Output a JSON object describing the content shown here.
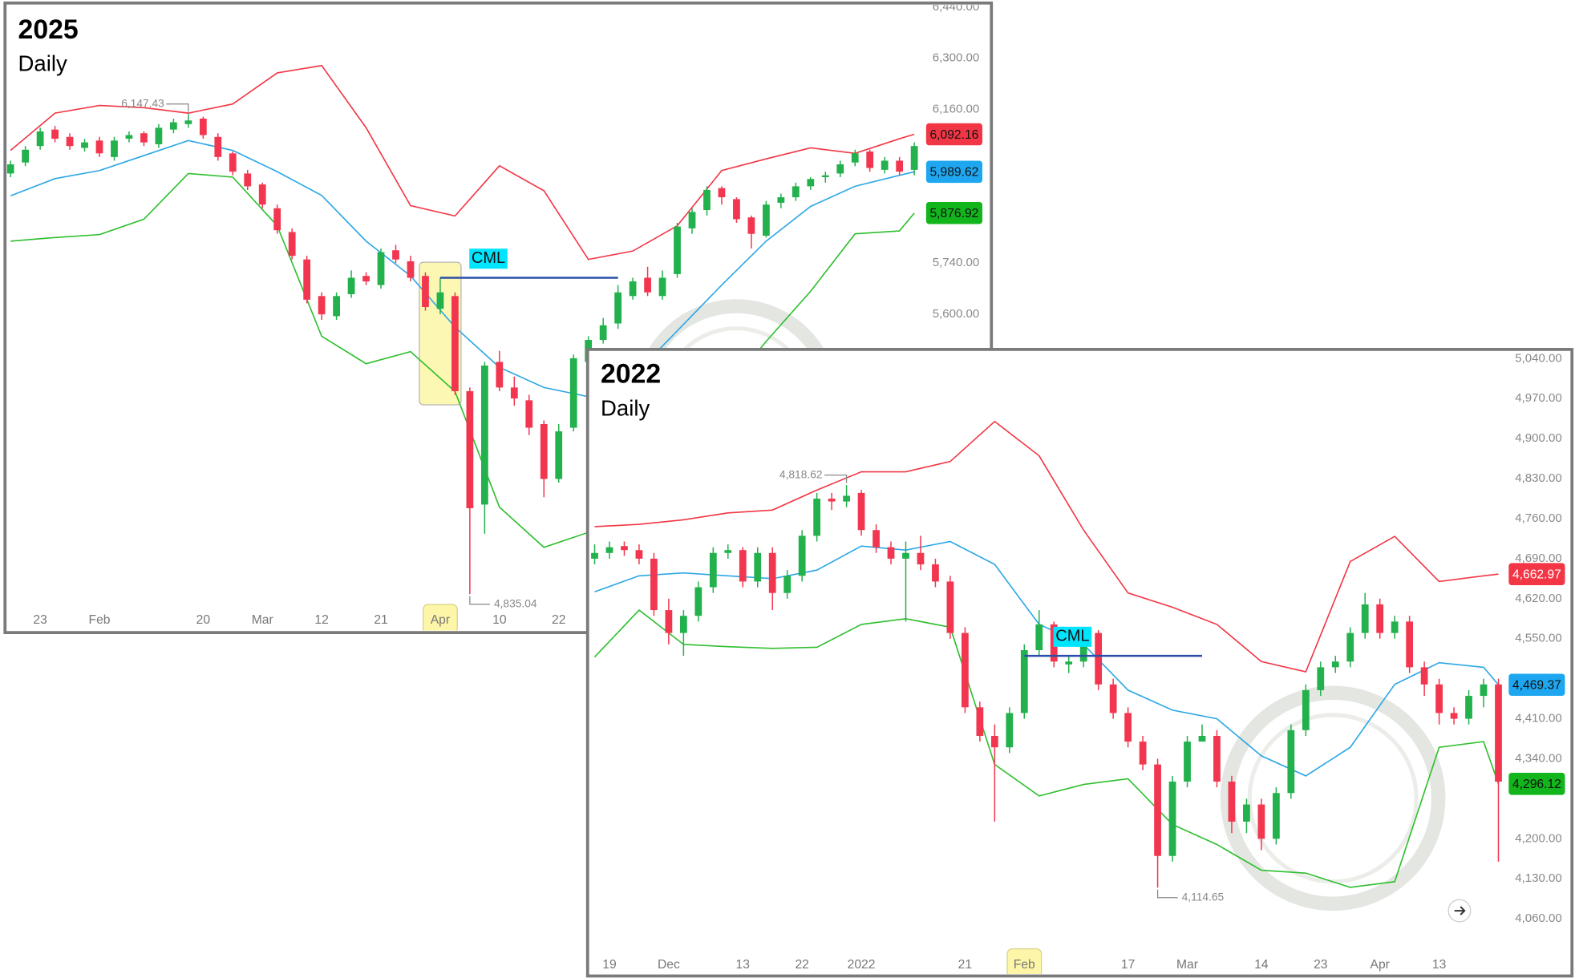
{
  "chart_data": [
    {
      "type": "candlestick",
      "title": "2025",
      "subtitle": "Daily",
      "categories": [
        null,
        null,
        "23",
        null,
        null,
        null,
        "Feb",
        null,
        null,
        null,
        null,
        null,
        null,
        "20",
        null,
        null,
        null,
        "Mar",
        null,
        null,
        null,
        "12",
        null,
        null,
        null,
        "21",
        null,
        null,
        null,
        "Apr",
        null,
        null,
        null,
        "10",
        null,
        null,
        null,
        "22",
        null,
        null,
        null,
        null,
        null,
        null,
        null,
        null,
        null,
        null,
        null,
        null,
        null,
        null,
        null,
        null,
        null,
        null,
        null,
        null,
        null,
        null,
        null,
        null
      ],
      "open": [
        5985,
        6015,
        6060,
        6105,
        6085,
        6055,
        6075,
        6030,
        6080,
        6095,
        6065,
        6105,
        6120,
        6135,
        6085,
        6040,
        5985,
        5955,
        5890,
        5825,
        5750,
        5650,
        5595,
        5655,
        5705,
        5680,
        5775,
        5745,
        5705,
        5615,
        5650,
        5390,
        5080,
        5470,
        5400,
        5365,
        5300,
        5150,
        5290,
        5470,
        5530,
        5575,
        5650,
        5700,
        5650,
        5710,
        5835,
        5885,
        5945,
        5915,
        5865,
        5815,
        5905,
        5920,
        5950,
        5975,
        5985,
        6015,
        6045,
        5995,
        6020,
        5995
      ],
      "high": [
        6020,
        6060,
        6110,
        6115,
        6095,
        6080,
        6085,
        6085,
        6100,
        6100,
        6120,
        6135,
        6147.43,
        6140,
        6095,
        6045,
        5995,
        5960,
        5900,
        5835,
        5760,
        5660,
        5660,
        5720,
        5715,
        5780,
        5790,
        5760,
        5715,
        5700,
        5660,
        5400,
        5470,
        5500,
        5430,
        5380,
        5310,
        5300,
        5490,
        5540,
        5590,
        5680,
        5700,
        5730,
        5720,
        5850,
        5890,
        5950,
        5950,
        5920,
        5870,
        5910,
        5930,
        5960,
        5975,
        5990,
        6020,
        6050,
        6050,
        6030,
        6030,
        6070
      ],
      "low": [
        5975,
        6005,
        6050,
        6070,
        6050,
        6045,
        6030,
        6020,
        6070,
        6060,
        6055,
        6095,
        6110,
        6080,
        6020,
        5980,
        5940,
        5890,
        5820,
        5750,
        5630,
        5585,
        5585,
        5645,
        5680,
        5670,
        5740,
        5690,
        5610,
        5600,
        5380,
        4835.04,
        5000,
        5390,
        5350,
        5270,
        5100,
        5140,
        5280,
        5460,
        5520,
        5560,
        5640,
        5650,
        5640,
        5700,
        5820,
        5870,
        5900,
        5850,
        5780,
        5810,
        5890,
        5910,
        5940,
        5960,
        5975,
        6005,
        5990,
        5985,
        5980,
        5980
      ],
      "close": [
        6010,
        6050,
        6100,
        6080,
        6060,
        6070,
        6040,
        6075,
        6090,
        6070,
        6110,
        6125,
        6130,
        6090,
        6030,
        5990,
        5950,
        5900,
        5830,
        5760,
        5640,
        5600,
        5650,
        5700,
        5690,
        5770,
        5750,
        5700,
        5620,
        5660,
        5390,
        5070,
        5460,
        5400,
        5370,
        5290,
        5150,
        5280,
        5480,
        5530,
        5570,
        5660,
        5690,
        5660,
        5700,
        5840,
        5880,
        5940,
        5920,
        5860,
        5820,
        5900,
        5920,
        5950,
        5970,
        5980,
        6010,
        6040,
        6000,
        6020,
        5990,
        6060
      ],
      "up_color": "#22b14c",
      "down_color": "#f23650",
      "lines": [
        {
          "color": "#f23645",
          "x": [
            0,
            3,
            6,
            9,
            12,
            15,
            18,
            21,
            24,
            27,
            30,
            33,
            36,
            39,
            42,
            45,
            48,
            51,
            54,
            57,
            60,
            61
          ],
          "values": [
            6048,
            6150,
            6171,
            6165,
            6150,
            6175,
            6260,
            6280,
            6110,
            5897,
            5869,
            6006,
            5938,
            5750,
            5773,
            5842,
            5993,
            6025,
            6055,
            6040,
            6080,
            6092.16
          ],
          "value_labels": [
            null,
            null,
            null,
            null,
            null,
            null,
            null,
            null,
            null,
            null,
            null,
            null,
            null,
            null,
            null,
            null,
            null,
            null,
            null,
            null,
            null,
            "6,092.16"
          ]
        },
        {
          "color": "#2da7e6",
          "x": [
            0,
            3,
            6,
            9,
            12,
            15,
            18,
            21,
            24,
            27,
            30,
            33,
            36,
            39,
            42,
            45,
            48,
            51,
            54,
            57,
            60,
            61
          ],
          "values": [
            5924,
            5971,
            5993,
            6034,
            6075,
            6048,
            5990,
            5925,
            5800,
            5705,
            5565,
            5455,
            5400,
            5375,
            5430,
            5555,
            5680,
            5800,
            5895,
            5950,
            5980,
            5989.62
          ],
          "value_labels": [
            null,
            null,
            null,
            null,
            null,
            null,
            null,
            null,
            null,
            null,
            null,
            null,
            null,
            null,
            null,
            null,
            null,
            null,
            null,
            null,
            null,
            "5,989.62"
          ]
        },
        {
          "color": "#2fbf2f",
          "x": [
            0,
            3,
            6,
            9,
            12,
            15,
            18,
            21,
            24,
            27,
            30,
            33,
            36,
            39,
            42,
            45,
            48,
            51,
            54,
            57,
            60,
            61
          ],
          "values": [
            5800,
            5810,
            5818,
            5860,
            5985,
            5975,
            5842,
            5540,
            5465,
            5498,
            5389,
            5073,
            4963,
            5004,
            5100,
            5238,
            5375,
            5526,
            5663,
            5820,
            5828,
            5876.92
          ],
          "value_labels": [
            null,
            null,
            null,
            null,
            null,
            null,
            null,
            null,
            null,
            null,
            null,
            null,
            null,
            null,
            null,
            null,
            null,
            null,
            null,
            null,
            null,
            "5,876.92"
          ]
        }
      ],
      "high_annotation": {
        "label": "6,147.43",
        "value": 6147.43
      },
      "low_annotation": {
        "label": "4,835.04",
        "value": 4835.04
      },
      "cml": {
        "label": "CML",
        "value": 5700,
        "color": "#2a4fa8"
      },
      "ylim": [
        4730,
        6451
      ],
      "yticks": [
        {
          "value": 6440,
          "label": "6,440.00"
        },
        {
          "value": 6300,
          "label": "6,300.00"
        },
        {
          "value": 6160,
          "label": "6,160.00"
        },
        {
          "value": 5740,
          "label": "5,740.00"
        },
        {
          "value": 5600,
          "label": "5,600.00"
        }
      ]
    },
    {
      "type": "candlestick",
      "title": "2022",
      "subtitle": "Daily",
      "categories": [
        null,
        "19",
        null,
        null,
        null,
        "Dec",
        null,
        null,
        null,
        null,
        "13",
        null,
        null,
        null,
        "22",
        null,
        null,
        null,
        "2022",
        null,
        null,
        null,
        null,
        null,
        null,
        "21",
        null,
        null,
        null,
        "Feb",
        null,
        null,
        null,
        null,
        null,
        null,
        "17",
        null,
        null,
        null,
        "Mar",
        null,
        null,
        null,
        null,
        "14",
        null,
        null,
        null,
        "23",
        null,
        null,
        null,
        "Apr",
        null,
        null,
        null,
        "13",
        null,
        null,
        null,
        null
      ],
      "open": [
        4690,
        4700,
        4712,
        4705,
        4690,
        4600,
        4560,
        4590,
        4640,
        4700,
        4705,
        4650,
        4700,
        4630,
        4660,
        4730,
        4795,
        4790,
        4805,
        4740,
        4710,
        4690,
        4700,
        4680,
        4650,
        4560,
        4430,
        4380,
        4360,
        4420,
        4530,
        4575,
        4505,
        4510,
        4560,
        4470,
        4420,
        4370,
        4330,
        4170,
        4300,
        4370,
        4380,
        4300,
        4230,
        4260,
        4200,
        4280,
        4390,
        4460,
        4500,
        4510,
        4560,
        4610,
        4560,
        4580,
        4500,
        4470,
        4420,
        4410,
        4450,
        4470
      ],
      "high": [
        4715,
        4720,
        4720,
        4715,
        4700,
        4620,
        4600,
        4650,
        4710,
        4715,
        4710,
        4710,
        4710,
        4670,
        4740,
        4805,
        4805,
        4818.62,
        4810,
        4750,
        4720,
        4720,
        4730,
        4690,
        4660,
        4570,
        4440,
        4400,
        4430,
        4540,
        4600,
        4580,
        4520,
        4570,
        4565,
        4480,
        4430,
        4380,
        4340,
        4310,
        4380,
        4400,
        4390,
        4310,
        4270,
        4270,
        4290,
        4400,
        4470,
        4510,
        4520,
        4570,
        4630,
        4620,
        4590,
        4590,
        4510,
        4480,
        4430,
        4460,
        4480,
        4480
      ],
      "low": [
        4680,
        4690,
        4695,
        4680,
        4590,
        4540,
        4520,
        4580,
        4630,
        4690,
        4640,
        4640,
        4600,
        4620,
        4650,
        4720,
        4775,
        4780,
        4730,
        4700,
        4680,
        4580,
        4670,
        4640,
        4550,
        4420,
        4370,
        4230,
        4350,
        4410,
        4520,
        4500,
        4490,
        4500,
        4460,
        4410,
        4360,
        4320,
        4114.65,
        4160,
        4290,
        4370,
        4290,
        4210,
        4210,
        4180,
        4190,
        4270,
        4380,
        4450,
        4490,
        4500,
        4550,
        4550,
        4550,
        4490,
        4450,
        4400,
        4400,
        4400,
        4430,
        4160
      ],
      "close": [
        4700,
        4710,
        4705,
        4690,
        4600,
        4560,
        4590,
        4640,
        4700,
        4705,
        4650,
        4700,
        4630,
        4660,
        4730,
        4795,
        4790,
        4800,
        4740,
        4710,
        4690,
        4700,
        4680,
        4650,
        4560,
        4430,
        4380,
        4360,
        4420,
        4530,
        4575,
        4510,
        4510,
        4560,
        4470,
        4420,
        4370,
        4330,
        4170,
        4300,
        4370,
        4380,
        4300,
        4230,
        4260,
        4200,
        4280,
        4390,
        4460,
        4500,
        4510,
        4560,
        4610,
        4560,
        4580,
        4500,
        4470,
        4420,
        4410,
        4450,
        4470,
        4300
      ],
      "up_color": "#22b14c",
      "down_color": "#f23650",
      "lines": [
        {
          "color": "#f23645",
          "x": [
            0,
            3,
            6,
            9,
            12,
            15,
            18,
            21,
            24,
            27,
            30,
            33,
            36,
            39,
            42,
            45,
            48,
            51,
            54,
            57,
            60,
            61
          ],
          "values": [
            4746,
            4750,
            4758,
            4770,
            4775,
            4810,
            4842,
            4842,
            4860,
            4930,
            4870,
            4740,
            4630,
            4605,
            4575,
            4510,
            4492,
            4685,
            4729,
            4650,
            4660,
            4662.97
          ],
          "value_labels": [
            null,
            null,
            null,
            null,
            null,
            null,
            null,
            null,
            null,
            null,
            null,
            null,
            null,
            null,
            null,
            null,
            null,
            null,
            null,
            null,
            null,
            "4,662.97"
          ]
        },
        {
          "color": "#2da7e6",
          "x": [
            0,
            3,
            6,
            9,
            12,
            15,
            18,
            21,
            24,
            27,
            30,
            33,
            36,
            39,
            42,
            45,
            48,
            51,
            54,
            57,
            60,
            61
          ],
          "values": [
            4632,
            4660,
            4665,
            4660,
            4655,
            4670,
            4712,
            4705,
            4720,
            4680,
            4575,
            4540,
            4460,
            4425,
            4410,
            4345,
            4310,
            4360,
            4470,
            4508,
            4500,
            4469.37
          ],
          "value_labels": [
            null,
            null,
            null,
            null,
            null,
            null,
            null,
            null,
            null,
            null,
            null,
            null,
            null,
            null,
            null,
            null,
            null,
            null,
            null,
            null,
            null,
            "4,469.37"
          ]
        },
        {
          "color": "#2fbf2f",
          "x": [
            0,
            3,
            6,
            9,
            12,
            15,
            18,
            21,
            24,
            27,
            30,
            33,
            36,
            39,
            42,
            45,
            48,
            51,
            54,
            57,
            60,
            61
          ],
          "values": [
            4518,
            4600,
            4540,
            4536,
            4533,
            4535,
            4575,
            4585,
            4570,
            4330,
            4275,
            4295,
            4305,
            4225,
            4190,
            4145,
            4140,
            4115,
            4125,
            4360,
            4370,
            4296.12
          ],
          "value_labels": [
            null,
            null,
            null,
            null,
            null,
            null,
            null,
            null,
            null,
            null,
            null,
            null,
            null,
            null,
            null,
            null,
            null,
            null,
            null,
            null,
            null,
            "4,296.12"
          ]
        }
      ],
      "high_annotation": {
        "label": "4,818.62",
        "value": 4818.62
      },
      "low_annotation": {
        "label": "4,114.65",
        "value": 4114.65
      },
      "cml": {
        "label": "CML",
        "value": 4520,
        "color": "#2a4fa8"
      },
      "ylim": [
        3960,
        5056
      ],
      "yticks": [
        {
          "value": 5040,
          "label": "5,040.00"
        },
        {
          "value": 4970,
          "label": "4,970.00"
        },
        {
          "value": 4900,
          "label": "4,900.00"
        },
        {
          "value": 4830,
          "label": "4,830.00"
        },
        {
          "value": 4760,
          "label": "4,760.00"
        },
        {
          "value": 4690,
          "label": "4,690.00"
        },
        {
          "value": 4620,
          "label": "4,620.00"
        },
        {
          "value": 4550,
          "label": "4,550.00"
        },
        {
          "value": 4410,
          "label": "4,410.00"
        },
        {
          "value": 4340,
          "label": "4,340.00"
        },
        {
          "value": 4200,
          "label": "4,200.00"
        },
        {
          "value": 4130,
          "label": "4,130.00"
        },
        {
          "value": 4060,
          "label": "4,060.00"
        }
      ]
    }
  ]
}
